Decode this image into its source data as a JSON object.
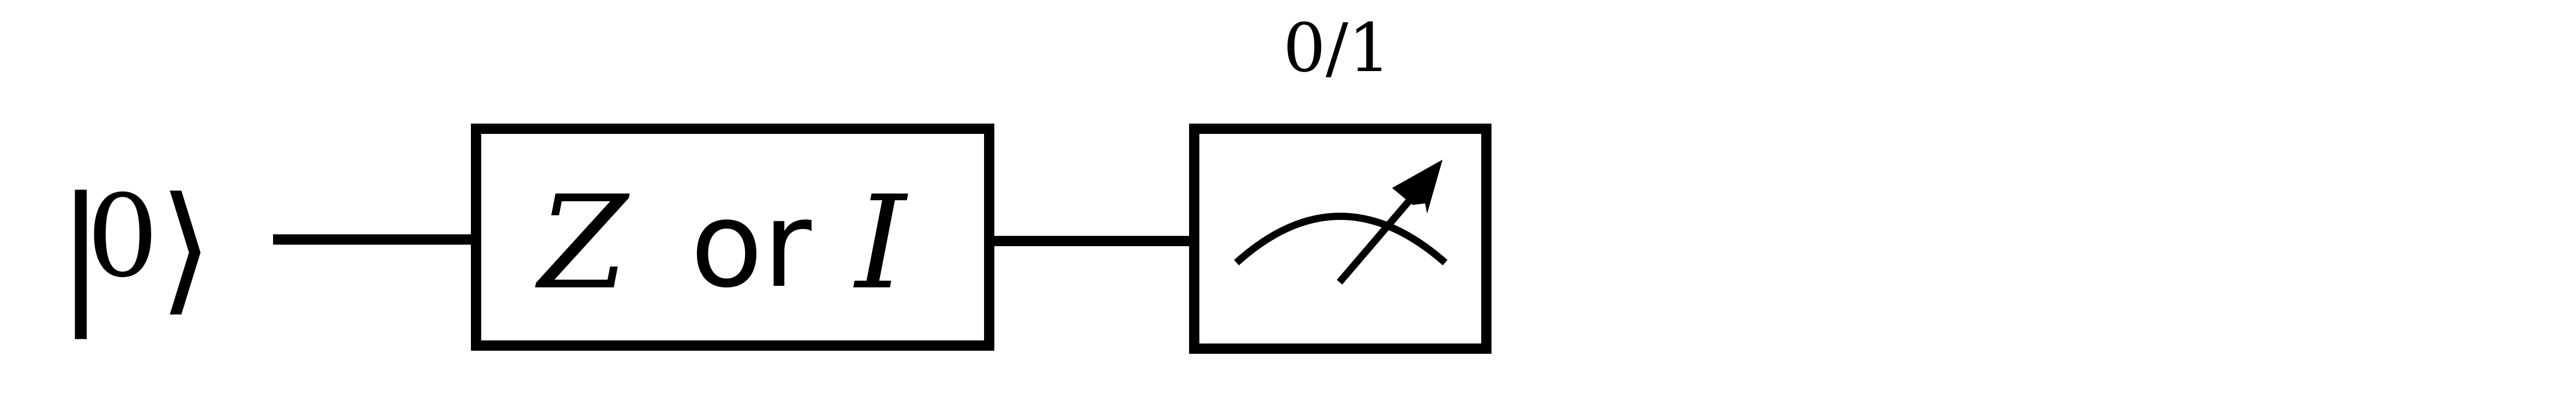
{
  "circuit": {
    "input_state": {
      "left_bar": "|",
      "value": "0",
      "right_angle": "⟩"
    },
    "gate": {
      "first": "Z",
      "connector": "or",
      "second": "I"
    },
    "measurement": {
      "icon": "meter-icon",
      "outcome_label": "0/1"
    }
  },
  "colors": {
    "stroke": "#000000",
    "background": "#ffffff"
  }
}
